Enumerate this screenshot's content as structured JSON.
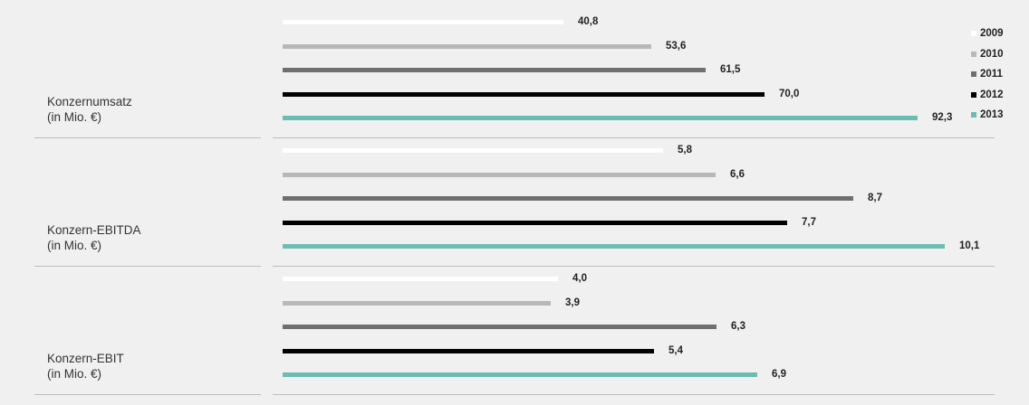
{
  "chart_data": {
    "type": "bar",
    "orientation": "horizontal",
    "series": [
      {
        "name": "2009",
        "color": "#ffffff"
      },
      {
        "name": "2010",
        "color": "#b8b8b8"
      },
      {
        "name": "2011",
        "color": "#6f6f6f"
      },
      {
        "name": "2012",
        "color": "#000000"
      },
      {
        "name": "2013",
        "color": "#6cbcb1"
      }
    ],
    "panels": [
      {
        "label_line1": "Konzernumsatz",
        "label_line2": "(in Mio. €)",
        "values": [
          40.8,
          53.6,
          61.5,
          70.0,
          92.3
        ],
        "value_labels": [
          "40,8",
          "53,6",
          "61,5",
          "70,0",
          "92,3"
        ],
        "xlim": [
          0,
          100
        ]
      },
      {
        "label_line1": "Konzern-EBITDA",
        "label_line2": "(in Mio. €)",
        "values": [
          5.8,
          6.6,
          8.7,
          7.7,
          10.1
        ],
        "value_labels": [
          "5,8",
          "6,6",
          "8,7",
          "7,7",
          "10,1"
        ],
        "xlim": [
          0,
          10.5
        ]
      },
      {
        "label_line1": "Konzern-EBIT",
        "label_line2": "(in Mio. €)",
        "values": [
          4.0,
          3.9,
          6.3,
          5.4,
          6.9
        ],
        "value_labels": [
          "4,0",
          "3,9",
          "6,3",
          "5,4",
          "6,9"
        ],
        "xlim": [
          0,
          10.0
        ]
      }
    ],
    "legend_position": "right",
    "grid": false
  }
}
